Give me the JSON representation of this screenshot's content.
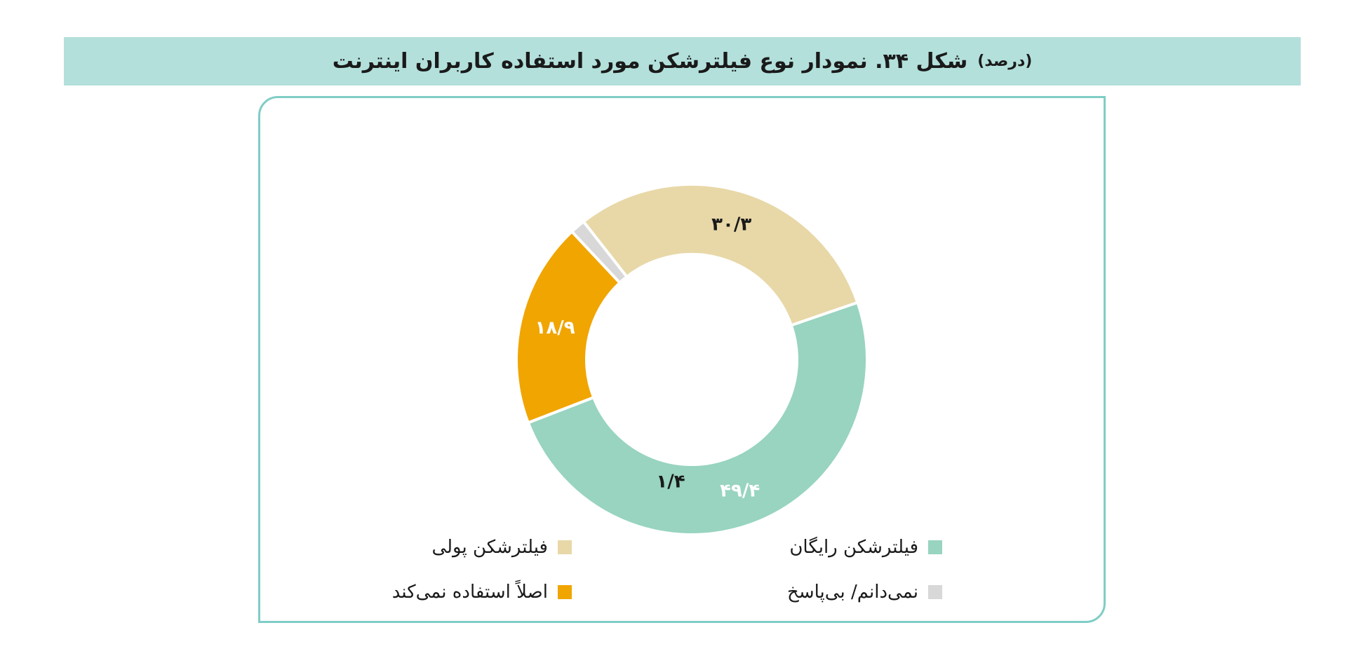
{
  "header": {
    "title": "شکل ۳۴. نمودار نوع فیلترشکن مورد استفاده کاربران اینترنت",
    "unit": "(درصد)",
    "band_color": "#b3e0db"
  },
  "chart_data": {
    "type": "pie",
    "donut": true,
    "categories": [
      "فیلترشکن رایگان",
      "اصلاً استفاده نمی‌کند",
      "نمی‌دانم/ بی‌پاسخ",
      "فیلترشکن پولی"
    ],
    "values": [
      49.4,
      18.9,
      1.4,
      30.3
    ],
    "data_labels": [
      "۴۹/۴",
      "۱۸/۹",
      "۱/۴",
      "۳۰/۳"
    ],
    "colors": [
      "#98d4c0",
      "#f0a500",
      "#d8d8d8",
      "#e8d8a8"
    ],
    "label_colors": [
      "#ffffff",
      "#ffffff",
      "#1a1a1a",
      "#1a1a1a"
    ],
    "start_angle_deg": 71,
    "direction": "clockwise",
    "legend": {
      "placement": "bottom",
      "items": [
        {
          "label": "فیلترشکن رایگان",
          "color": "#98d4c0"
        },
        {
          "label": "فیلترشکن پولی",
          "color": "#e8d8a8"
        },
        {
          "label": "نمی‌دانم/ بی‌پاسخ",
          "color": "#d8d8d8"
        },
        {
          "label": "اصلاً استفاده نمی‌کند",
          "color": "#f0a500"
        }
      ]
    },
    "title": "شکل ۳۴. نمودار نوع فیلترشکن مورد استفاده کاربران اینترنت",
    "unit": "(درصد)"
  },
  "panel": {
    "border_color": "#7fcdc6"
  }
}
